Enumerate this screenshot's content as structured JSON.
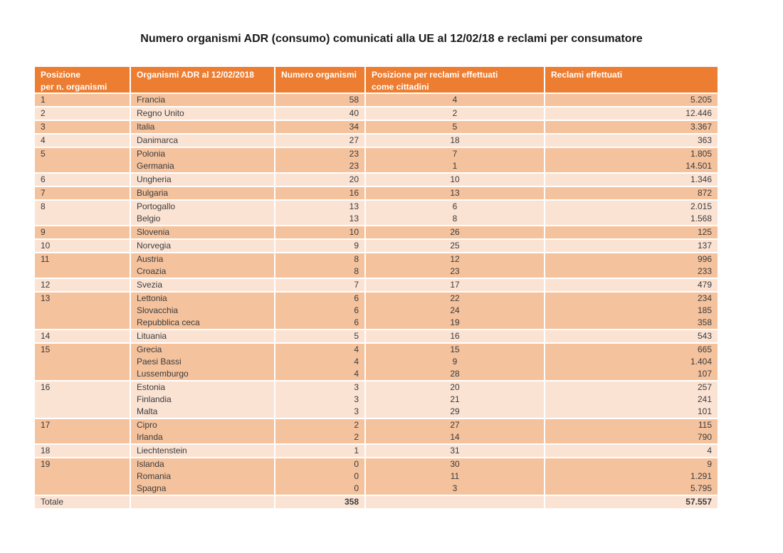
{
  "title": "Numero organismi ADR (consumo) comunicati alla UE al 12/02/18 e reclami per consumatore",
  "colors": {
    "header_bg": "#ED7D31",
    "header_text": "#FFFFFF",
    "band_dark": "#F4C29D",
    "band_light": "#FBE3D4",
    "body_text": "#3B3B3B"
  },
  "table": {
    "columns": [
      {
        "id": "posizione",
        "label_lines": [
          "Posizione",
          "per n. organismi"
        ]
      },
      {
        "id": "paese",
        "label_lines": [
          "Organismi ADR al 12/02/2018"
        ]
      },
      {
        "id": "numero_organismi",
        "label_lines": [
          "Numero organismi"
        ]
      },
      {
        "id": "posizione_reclami",
        "label_lines": [
          "Posizione per reclami effettuati",
          "come cittadini"
        ]
      },
      {
        "id": "reclami_effettuati",
        "label_lines": [
          "Reclami effettuati"
        ]
      }
    ],
    "groups": [
      {
        "posizione": "1",
        "rows": [
          {
            "paese": "Francia",
            "numero": "58",
            "pos_reclami": "4",
            "reclami": "5.205"
          }
        ]
      },
      {
        "posizione": "2",
        "rows": [
          {
            "paese": "Regno Unito",
            "numero": "40",
            "pos_reclami": "2",
            "reclami": "12.446"
          }
        ]
      },
      {
        "posizione": "3",
        "rows": [
          {
            "paese": "Italia",
            "numero": "34",
            "pos_reclami": "5",
            "reclami": "3.367"
          }
        ]
      },
      {
        "posizione": "4",
        "rows": [
          {
            "paese": "Danimarca",
            "numero": "27",
            "pos_reclami": "18",
            "reclami": "363"
          }
        ]
      },
      {
        "posizione": "5",
        "rows": [
          {
            "paese": "Polonia",
            "numero": "23",
            "pos_reclami": "7",
            "reclami": "1.805"
          },
          {
            "paese": "Germania",
            "numero": "23",
            "pos_reclami": "1",
            "reclami": "14.501"
          }
        ]
      },
      {
        "posizione": "6",
        "rows": [
          {
            "paese": "Ungheria",
            "numero": "20",
            "pos_reclami": "10",
            "reclami": "1.346"
          }
        ]
      },
      {
        "posizione": "7",
        "rows": [
          {
            "paese": "Bulgaria",
            "numero": "16",
            "pos_reclami": "13",
            "reclami": "872"
          }
        ]
      },
      {
        "posizione": "8",
        "rows": [
          {
            "paese": "Portogallo",
            "numero": "13",
            "pos_reclami": "6",
            "reclami": "2.015"
          },
          {
            "paese": "Belgio",
            "numero": "13",
            "pos_reclami": "8",
            "reclami": "1.568"
          }
        ]
      },
      {
        "posizione": "9",
        "rows": [
          {
            "paese": "Slovenia",
            "numero": "10",
            "pos_reclami": "26",
            "reclami": "125"
          }
        ]
      },
      {
        "posizione": "10",
        "rows": [
          {
            "paese": "Norvegia",
            "numero": "9",
            "pos_reclami": "25",
            "reclami": "137"
          }
        ]
      },
      {
        "posizione": "11",
        "rows": [
          {
            "paese": "Austria",
            "numero": "8",
            "pos_reclami": "12",
            "reclami": "996"
          },
          {
            "paese": "Croazia",
            "numero": "8",
            "pos_reclami": "23",
            "reclami": "233"
          }
        ]
      },
      {
        "posizione": "12",
        "rows": [
          {
            "paese": "Svezia",
            "numero": "7",
            "pos_reclami": "17",
            "reclami": "479"
          }
        ]
      },
      {
        "posizione": "13",
        "rows": [
          {
            "paese": "Lettonia",
            "numero": "6",
            "pos_reclami": "22",
            "reclami": "234"
          },
          {
            "paese": "Slovacchia",
            "numero": "6",
            "pos_reclami": "24",
            "reclami": "185"
          },
          {
            "paese": "Repubblica ceca",
            "numero": "6",
            "pos_reclami": "19",
            "reclami": "358"
          }
        ]
      },
      {
        "posizione": "14",
        "rows": [
          {
            "paese": "Lituania",
            "numero": "5",
            "pos_reclami": "16",
            "reclami": "543"
          }
        ]
      },
      {
        "posizione": "15",
        "rows": [
          {
            "paese": "Grecia",
            "numero": "4",
            "pos_reclami": "15",
            "reclami": "665"
          },
          {
            "paese": "Paesi Bassi",
            "numero": "4",
            "pos_reclami": "9",
            "reclami": "1.404"
          },
          {
            "paese": "Lussemburgo",
            "numero": "4",
            "pos_reclami": "28",
            "reclami": "107"
          }
        ]
      },
      {
        "posizione": "16",
        "rows": [
          {
            "paese": "Estonia",
            "numero": "3",
            "pos_reclami": "20",
            "reclami": "257"
          },
          {
            "paese": "Finlandia",
            "numero": "3",
            "pos_reclami": "21",
            "reclami": "241"
          },
          {
            "paese": "Malta",
            "numero": "3",
            "pos_reclami": "29",
            "reclami": "101"
          }
        ]
      },
      {
        "posizione": "17",
        "rows": [
          {
            "paese": "Cipro",
            "numero": "2",
            "pos_reclami": "27",
            "reclami": "115"
          },
          {
            "paese": "Irlanda",
            "numero": "2",
            "pos_reclami": "14",
            "reclami": "790"
          }
        ]
      },
      {
        "posizione": "18",
        "rows": [
          {
            "paese": "Liechtenstein",
            "numero": "1",
            "pos_reclami": "31",
            "reclami": "4"
          }
        ]
      },
      {
        "posizione": "19",
        "rows": [
          {
            "paese": "Islanda",
            "numero": "0",
            "pos_reclami": "30",
            "reclami": "9"
          },
          {
            "paese": "Romania",
            "numero": "0",
            "pos_reclami": "11",
            "reclami": "1.291"
          },
          {
            "paese": "Spagna",
            "numero": "0",
            "pos_reclami": "3",
            "reclami": "5.795"
          }
        ]
      }
    ],
    "total_row": {
      "label": "Totale",
      "numero_organismi": "358",
      "reclami_effettuati": "57.557"
    }
  }
}
